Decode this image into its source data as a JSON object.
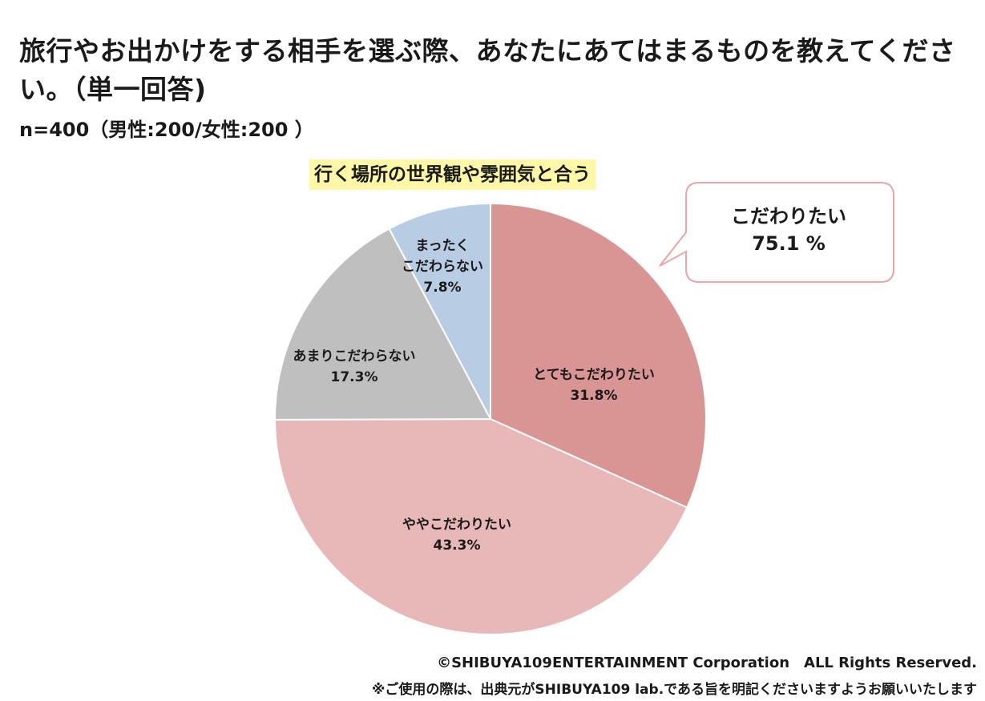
{
  "header": {
    "title": "旅行やお出かけをする相手を選ぶ際、あなたにあてはまるものを教えてください。（単一回答)",
    "sample": "n=400（男性:200/女性:200 ）"
  },
  "chart_data": {
    "type": "pie",
    "title": "行く場所の世界観や雰囲気と合う",
    "slices": [
      {
        "label": "とてもこだわりたい",
        "value": 31.8,
        "value_label": "31.8%",
        "color": "#d99494"
      },
      {
        "label": "ややこだわりたい",
        "value": 43.3,
        "value_label": "43.3%",
        "color": "#e8b8b8"
      },
      {
        "label": "あまりこだわらない",
        "value": 17.3,
        "value_label": "17.3%",
        "color": "#bfbfbf"
      },
      {
        "label": "まったくこだわらない",
        "label_lines": [
          "まったく",
          "こだわらない"
        ],
        "value": 7.8,
        "value_label": "7.8%",
        "color": "#b8cce4"
      }
    ],
    "start": "12 o'clock",
    "direction": "clockwise",
    "callout": {
      "label": "こだわりたい",
      "value": "75.1 %"
    }
  },
  "footer": {
    "copyright": "©SHIBUYA109ENTERTAINMENT Corporation　ALL Rights Reserved.",
    "note": "※ご使用の際は、出典元がSHIBUYA109 lab.である旨を明記くださいますようお願いいたします"
  }
}
